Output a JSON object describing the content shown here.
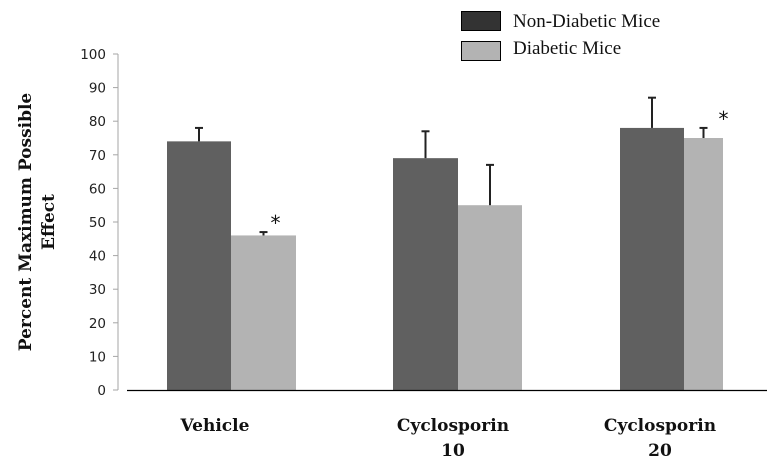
{
  "chart_data": {
    "type": "bar",
    "title": "",
    "xlabel": "",
    "ylabel": [
      "Percent Maximum Possible",
      "Effect"
    ],
    "ylim": [
      0,
      100
    ],
    "yticks": [
      0,
      10,
      20,
      30,
      40,
      50,
      60,
      70,
      80,
      90,
      100
    ],
    "grid": false,
    "legend_position": "top-right",
    "categories": [
      [
        "Vehicle"
      ],
      [
        "Cyclosporin",
        "10"
      ],
      [
        "Cyclosporin",
        "20"
      ]
    ],
    "series": [
      {
        "name": "Non-Diabetic Mice",
        "color": "#606060",
        "legend_color": "#333333",
        "values": [
          74,
          69,
          78
        ],
        "error_upper": [
          78,
          77,
          87
        ],
        "significant": [
          false,
          false,
          false
        ]
      },
      {
        "name": "Diabetic Mice",
        "color": "#b3b3b3",
        "legend_color": "#b3b3b3",
        "values": [
          46,
          55,
          75
        ],
        "error_upper": [
          47,
          67,
          78
        ],
        "significant": [
          true,
          false,
          true
        ]
      }
    ],
    "significance_marker": "*"
  }
}
